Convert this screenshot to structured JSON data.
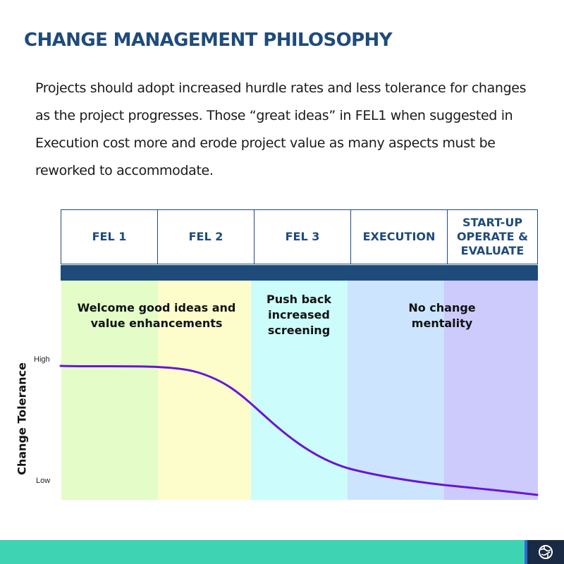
{
  "slide": {
    "title": "CHANGE MANAGEMENT PHILOSOPHY",
    "body": "Projects should adopt increased hurdle rates and less tolerance for changes as the project progresses.  Those “great ideas” in FEL1 when suggested in Execution cost more and erode project value as many aspects must be reworked to accommodate."
  },
  "diagram": {
    "phases": [
      {
        "label": "FEL 1"
      },
      {
        "label": "FEL 2"
      },
      {
        "label": "FEL 3"
      },
      {
        "label": "EXECUTION"
      },
      {
        "label": "START-UP\nOPERATE &\nEVALUATE"
      }
    ],
    "bands": [
      {
        "color": "#e3fcc8"
      },
      {
        "color": "#fdfdcc"
      },
      {
        "color": "#ccfcfb"
      },
      {
        "color": "#cce4fd"
      },
      {
        "color": "#cccbfc"
      }
    ],
    "band_labels": [
      {
        "text": "Welcome good ideas and value enhancements"
      },
      {
        "text": "Push back increased screening"
      },
      {
        "text": "No change mentality"
      }
    ],
    "y_axis": {
      "title": "Change Tolerance",
      "high_label": "High",
      "low_label": "Low"
    },
    "curve": {
      "color": "#6a14d6",
      "description_points": [
        [
          0.0,
          1.0
        ],
        [
          0.6,
          0.98
        ],
        [
          1.0,
          0.95
        ],
        [
          1.5,
          0.75
        ],
        [
          2.0,
          0.45
        ],
        [
          2.5,
          0.28
        ],
        [
          3.0,
          0.21
        ],
        [
          4.0,
          0.12
        ],
        [
          5.0,
          0.06
        ]
      ]
    }
  },
  "colors": {
    "title": "#1f4b7a",
    "header_bar": "#1f4b7a",
    "footer": "#3dd3b3",
    "logo_bg": "#1b2a44"
  }
}
